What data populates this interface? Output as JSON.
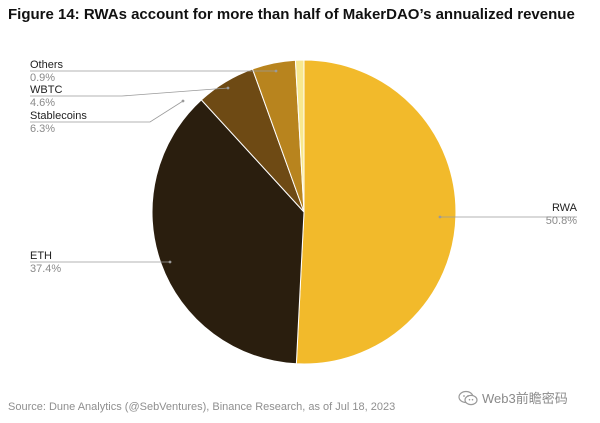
{
  "header": {
    "title": "Figure 14: RWAs account for more than half of MakerDAO’s annualized revenue"
  },
  "footer": {
    "source": "Source: Dune Analytics (@SebVentures), Binance Research, as of Jul 18, 2023",
    "watermark": "Web3前瞻密码"
  },
  "chart_data": {
    "type": "pie",
    "title": "Figure 14: RWAs account for more than half of MakerDAO’s annualized revenue",
    "legend": "none",
    "slices": [
      {
        "label": "RWA",
        "value": 50.8,
        "value_label": "50.8%",
        "color": "#F2BA2B"
      },
      {
        "label": "ETH",
        "value": 37.4,
        "value_label": "37.4%",
        "color": "#2A1E0E"
      },
      {
        "label": "Stablecoins",
        "value": 6.3,
        "value_label": "6.3%",
        "color": "#6E4A14"
      },
      {
        "label": "WBTC",
        "value": 4.6,
        "value_label": "4.6%",
        "color": "#B8841E"
      },
      {
        "label": "Others",
        "value": 0.9,
        "value_label": "0.9%",
        "color": "#F8E88E"
      }
    ]
  }
}
